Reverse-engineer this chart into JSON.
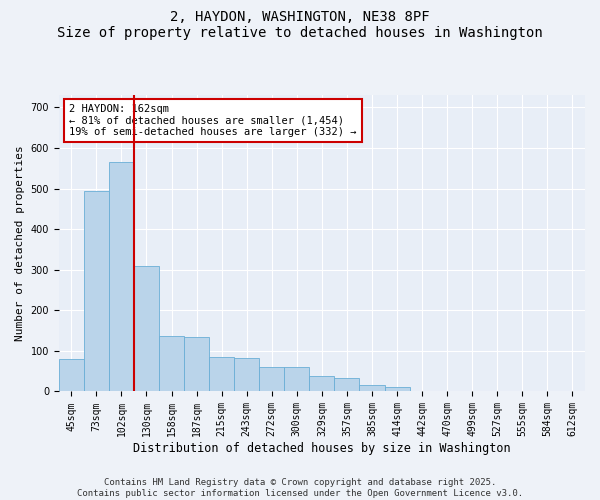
{
  "title": "2, HAYDON, WASHINGTON, NE38 8PF",
  "subtitle": "Size of property relative to detached houses in Washington",
  "xlabel": "Distribution of detached houses by size in Washington",
  "ylabel": "Number of detached properties",
  "categories": [
    "45sqm",
    "73sqm",
    "102sqm",
    "130sqm",
    "158sqm",
    "187sqm",
    "215sqm",
    "243sqm",
    "272sqm",
    "300sqm",
    "329sqm",
    "357sqm",
    "385sqm",
    "414sqm",
    "442sqm",
    "470sqm",
    "499sqm",
    "527sqm",
    "555sqm",
    "584sqm",
    "612sqm"
  ],
  "values": [
    80,
    493,
    566,
    308,
    137,
    135,
    85,
    82,
    60,
    60,
    38,
    33,
    15,
    12,
    0,
    0,
    0,
    0,
    0,
    0,
    0
  ],
  "bar_color": "#bad4ea",
  "bar_edge_color": "#6aaed6",
  "vline_x_index": 3,
  "vline_color": "#cc0000",
  "annotation_text": "2 HAYDON: 162sqm\n← 81% of detached houses are smaller (1,454)\n19% of semi-detached houses are larger (332) →",
  "annotation_box_color": "#ffffff",
  "annotation_box_edge_color": "#cc0000",
  "annotation_fontsize": 7.5,
  "title_fontsize": 10,
  "subtitle_fontsize": 9,
  "xlabel_fontsize": 8.5,
  "ylabel_fontsize": 8,
  "tick_fontsize": 7,
  "footer_text": "Contains HM Land Registry data © Crown copyright and database right 2025.\nContains public sector information licensed under the Open Government Licence v3.0.",
  "footer_fontsize": 6.5,
  "ylim": [
    0,
    730
  ],
  "yticks": [
    0,
    100,
    200,
    300,
    400,
    500,
    600,
    700
  ],
  "background_color": "#eef2f8",
  "plot_background_color": "#e8eef7",
  "grid_color": "#ffffff"
}
